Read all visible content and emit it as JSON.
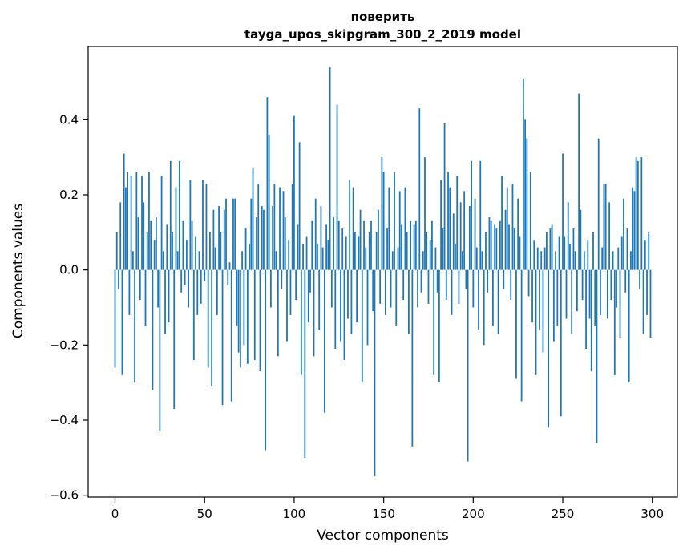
{
  "chart_data": {
    "type": "bar",
    "title": "поверить",
    "subtitle": "tayga_upos_skipgram_300_2_2019 model",
    "xlabel": "Vector components",
    "ylabel": "Components values",
    "bar_color": "#1f77b4",
    "xlim": [
      -15,
      314
    ],
    "ylim": [
      -0.605,
      0.595
    ],
    "xticks": [
      0,
      50,
      100,
      150,
      200,
      250,
      300
    ],
    "xtick_labels": [
      "0",
      "50",
      "100",
      "150",
      "200",
      "250",
      "300"
    ],
    "ytick_values": [
      -0.6,
      -0.4,
      -0.2,
      0.0,
      0.2,
      0.4
    ],
    "ytick_labels": [
      "−0.6",
      "−0.4",
      "−0.2",
      "0.0",
      "0.2",
      "0.4"
    ],
    "legend": "none",
    "grid": false,
    "values": [
      -0.26,
      0.1,
      -0.05,
      0.18,
      -0.28,
      0.31,
      0.22,
      0.26,
      -0.12,
      0.25,
      0.05,
      -0.3,
      0.26,
      0.14,
      -0.08,
      0.25,
      0.18,
      -0.15,
      0.1,
      0.26,
      0.13,
      -0.32,
      0.08,
      0.14,
      -0.1,
      -0.43,
      0.25,
      0.05,
      -0.17,
      0.12,
      -0.14,
      0.29,
      0.1,
      -0.37,
      0.22,
      0.05,
      0.29,
      -0.06,
      0.13,
      -0.04,
      0.08,
      -0.1,
      0.24,
      0.13,
      -0.24,
      0.09,
      -0.12,
      0.05,
      -0.09,
      0.24,
      -0.03,
      0.23,
      -0.26,
      0.1,
      -0.31,
      0.16,
      0.06,
      -0.12,
      0.17,
      0.1,
      -0.36,
      0.16,
      0.19,
      -0.04,
      0.02,
      -0.35,
      0.19,
      0.19,
      -0.15,
      -0.22,
      -0.26,
      0.05,
      -0.2,
      0.11,
      -0.25,
      0.07,
      0.19,
      0.27,
      -0.24,
      0.14,
      0.23,
      -0.27,
      0.17,
      0.16,
      -0.48,
      0.46,
      0.36,
      -0.1,
      0.17,
      0.23,
      0.05,
      -0.23,
      0.22,
      -0.05,
      0.21,
      0.14,
      -0.19,
      0.08,
      -0.12,
      0.23,
      0.41,
      -0.08,
      0.12,
      0.34,
      -0.28,
      0.07,
      -0.5,
      0.09,
      -0.14,
      -0.06,
      0.13,
      -0.23,
      0.19,
      0.07,
      -0.16,
      0.17,
      0.06,
      -0.38,
      0.12,
      0.08,
      0.54,
      -0.1,
      0.14,
      -0.21,
      0.44,
      0.13,
      -0.19,
      0.11,
      -0.24,
      0.09,
      -0.13,
      0.24,
      -0.17,
      0.22,
      0.1,
      -0.14,
      0.09,
      0.16,
      -0.3,
      0.13,
      0.06,
      -0.2,
      0.1,
      0.13,
      -0.11,
      -0.55,
      0.1,
      0.16,
      -0.09,
      0.3,
      0.26,
      -0.12,
      0.11,
      0.22,
      -0.1,
      0.05,
      0.26,
      -0.15,
      0.06,
      0.21,
      0.12,
      -0.08,
      0.22,
      0.1,
      -0.17,
      0.13,
      -0.47,
      0.12,
      0.13,
      -0.1,
      0.43,
      -0.06,
      0.05,
      0.3,
      0.1,
      -0.09,
      0.08,
      0.13,
      -0.28,
      0.06,
      -0.06,
      -0.3,
      0.24,
      0.11,
      0.39,
      -0.08,
      0.26,
      0.22,
      -0.12,
      0.15,
      0.07,
      0.25,
      -0.09,
      0.18,
      0.05,
      0.21,
      -0.05,
      -0.51,
      0.17,
      0.29,
      -0.1,
      0.19,
      0.06,
      -0.16,
      0.29,
      0.05,
      -0.2,
      0.1,
      -0.06,
      0.14,
      0.13,
      -0.15,
      0.12,
      0.11,
      -0.17,
      0.13,
      0.25,
      -0.05,
      0.16,
      0.22,
      0.12,
      -0.08,
      0.23,
      0.11,
      -0.29,
      0.19,
      0.09,
      -0.35,
      0.51,
      0.4,
      0.35,
      -0.07,
      0.26,
      -0.14,
      0.08,
      -0.28,
      0.06,
      -0.16,
      0.05,
      -0.22,
      0.06,
      0.1,
      -0.42,
      0.11,
      0.12,
      -0.19,
      0.05,
      -0.15,
      0.09,
      -0.39,
      0.31,
      0.09,
      -0.13,
      0.18,
      0.07,
      -0.17,
      0.11,
      0.05,
      -0.11,
      0.47,
      0.16,
      -0.08,
      0.05,
      -0.21,
      0.08,
      -0.13,
      -0.27,
      0.1,
      -0.15,
      -0.46,
      0.35,
      -0.12,
      0.06,
      0.23,
      0.23,
      -0.13,
      0.18,
      -0.08,
      0.05,
      -0.28,
      -0.1,
      0.06,
      -0.18,
      0.09,
      0.19,
      -0.06,
      0.11,
      -0.3,
      0.05,
      0.22,
      0.21,
      0.3,
      0.29,
      -0.05,
      0.3,
      -0.17,
      0.08,
      -0.12,
      0.1,
      -0.18
    ]
  }
}
